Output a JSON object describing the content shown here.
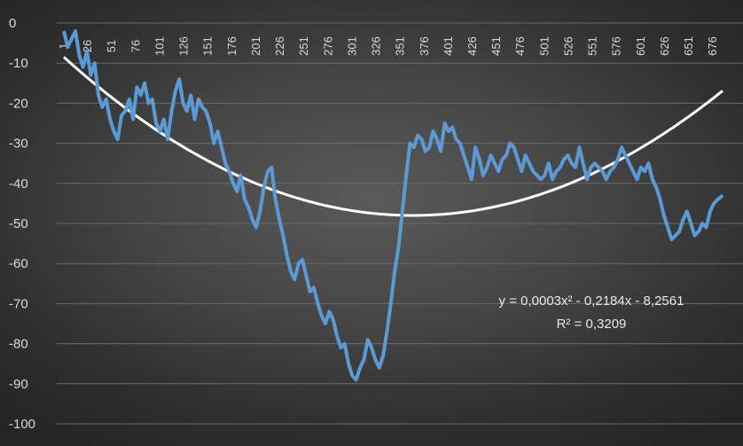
{
  "chart_data": {
    "type": "line",
    "title": "",
    "xlabel": "",
    "ylabel": "",
    "grid": true,
    "legend": "none",
    "xlim": [
      1,
      686
    ],
    "ylim": [
      -100,
      0
    ],
    "y_ticks": [
      "0",
      "-10",
      "-20",
      "-30",
      "-40",
      "-50",
      "-60",
      "-70",
      "-80",
      "-90",
      "-100"
    ],
    "y_tick_values": [
      0,
      -10,
      -20,
      -30,
      -40,
      -50,
      -60,
      -70,
      -80,
      -90,
      -100
    ],
    "x_ticks": [
      "1",
      "26",
      "51",
      "76",
      "101",
      "126",
      "151",
      "176",
      "201",
      "226",
      "251",
      "276",
      "301",
      "326",
      "351",
      "376",
      "401",
      "426",
      "451",
      "476",
      "501",
      "526",
      "551",
      "576",
      "601",
      "626",
      "651",
      "676"
    ],
    "x_tick_values": [
      1,
      26,
      51,
      76,
      101,
      126,
      151,
      176,
      201,
      226,
      251,
      276,
      301,
      326,
      351,
      376,
      401,
      426,
      451,
      476,
      501,
      526,
      551,
      576,
      601,
      626,
      651,
      676
    ],
    "series": [
      {
        "color": "#5b9bd5",
        "x": [
          1,
          5,
          9,
          13,
          17,
          21,
          25,
          29,
          33,
          37,
          41,
          45,
          49,
          53,
          57,
          61,
          65,
          69,
          73,
          77,
          81,
          85,
          89,
          93,
          97,
          101,
          105,
          109,
          113,
          117,
          121,
          125,
          129,
          133,
          137,
          141,
          145,
          149,
          153,
          157,
          161,
          165,
          169,
          173,
          177,
          181,
          185,
          189,
          193,
          197,
          201,
          205,
          209,
          213,
          217,
          221,
          225,
          229,
          233,
          237,
          241,
          245,
          249,
          253,
          257,
          261,
          265,
          269,
          273,
          277,
          281,
          285,
          289,
          293,
          297,
          301,
          305,
          309,
          313,
          317,
          321,
          325,
          329,
          333,
          337,
          341,
          345,
          349,
          353,
          357,
          361,
          365,
          369,
          373,
          377,
          381,
          385,
          389,
          393,
          397,
          401,
          405,
          409,
          413,
          417,
          421,
          425,
          429,
          433,
          437,
          441,
          445,
          449,
          453,
          457,
          461,
          465,
          469,
          473,
          477,
          481,
          485,
          489,
          493,
          497,
          501,
          505,
          509,
          513,
          517,
          521,
          525,
          529,
          533,
          537,
          541,
          545,
          549,
          553,
          557,
          561,
          565,
          569,
          573,
          577,
          581,
          585,
          589,
          593,
          597,
          601,
          605,
          609,
          613,
          617,
          621,
          625,
          629,
          633,
          637,
          641,
          645,
          649,
          653,
          657,
          661,
          665,
          669,
          673,
          677,
          681,
          686
        ],
        "values": [
          -2,
          -6,
          -4,
          -2,
          -8,
          -11,
          -7,
          -13,
          -10,
          -18,
          -21,
          -19,
          -24,
          -27,
          -29,
          -23,
          -22,
          -19,
          -24,
          -16,
          -18,
          -15,
          -20,
          -19,
          -25,
          -27,
          -24,
          -29,
          -22,
          -17,
          -14,
          -20,
          -22,
          -18,
          -24,
          -19,
          -21,
          -22,
          -25,
          -30,
          -27,
          -31,
          -35,
          -37,
          -40,
          -42,
          -38,
          -44,
          -46,
          -49,
          -51,
          -47,
          -41,
          -37,
          -36,
          -44,
          -49,
          -53,
          -58,
          -62,
          -64,
          -60,
          -59,
          -63,
          -67,
          -66,
          -70,
          -73,
          -75,
          -72,
          -74,
          -78,
          -81,
          -80,
          -85,
          -88,
          -89,
          -86,
          -84,
          -79,
          -81,
          -84,
          -86,
          -83,
          -77,
          -70,
          -62,
          -56,
          -47,
          -38,
          -30,
          -31,
          -28,
          -29,
          -32,
          -31,
          -27,
          -29,
          -32,
          -25,
          -27,
          -26,
          -29,
          -30,
          -33,
          -36,
          -39,
          -31,
          -34,
          -38,
          -36,
          -33,
          -35,
          -37,
          -34,
          -33,
          -30,
          -31,
          -34,
          -37,
          -33,
          -35,
          -37,
          -38,
          -39,
          -38,
          -35,
          -39,
          -37,
          -36,
          -34,
          -33,
          -35,
          -36,
          -31,
          -35,
          -39,
          -36,
          -35,
          -36,
          -37,
          -39,
          -37,
          -36,
          -34,
          -31,
          -33,
          -35,
          -37,
          -39,
          -36,
          -37,
          -35,
          -39,
          -41,
          -44,
          -48,
          -51,
          -54,
          -53,
          -52,
          -49,
          -47,
          -50,
          -53,
          -52,
          -50,
          -51,
          -47,
          -45,
          -44,
          -43
        ]
      },
      {
        "color": "#ffffff",
        "trendline": "polynomial-2"
      }
    ],
    "annotations": {
      "equation": "y = 0,0003x² - 0,2184x - 8,2561",
      "r_squared": "R² = 0,3209"
    },
    "trendline_coefficients": [
      0.0003,
      -0.2184,
      -8.2561
    ]
  }
}
